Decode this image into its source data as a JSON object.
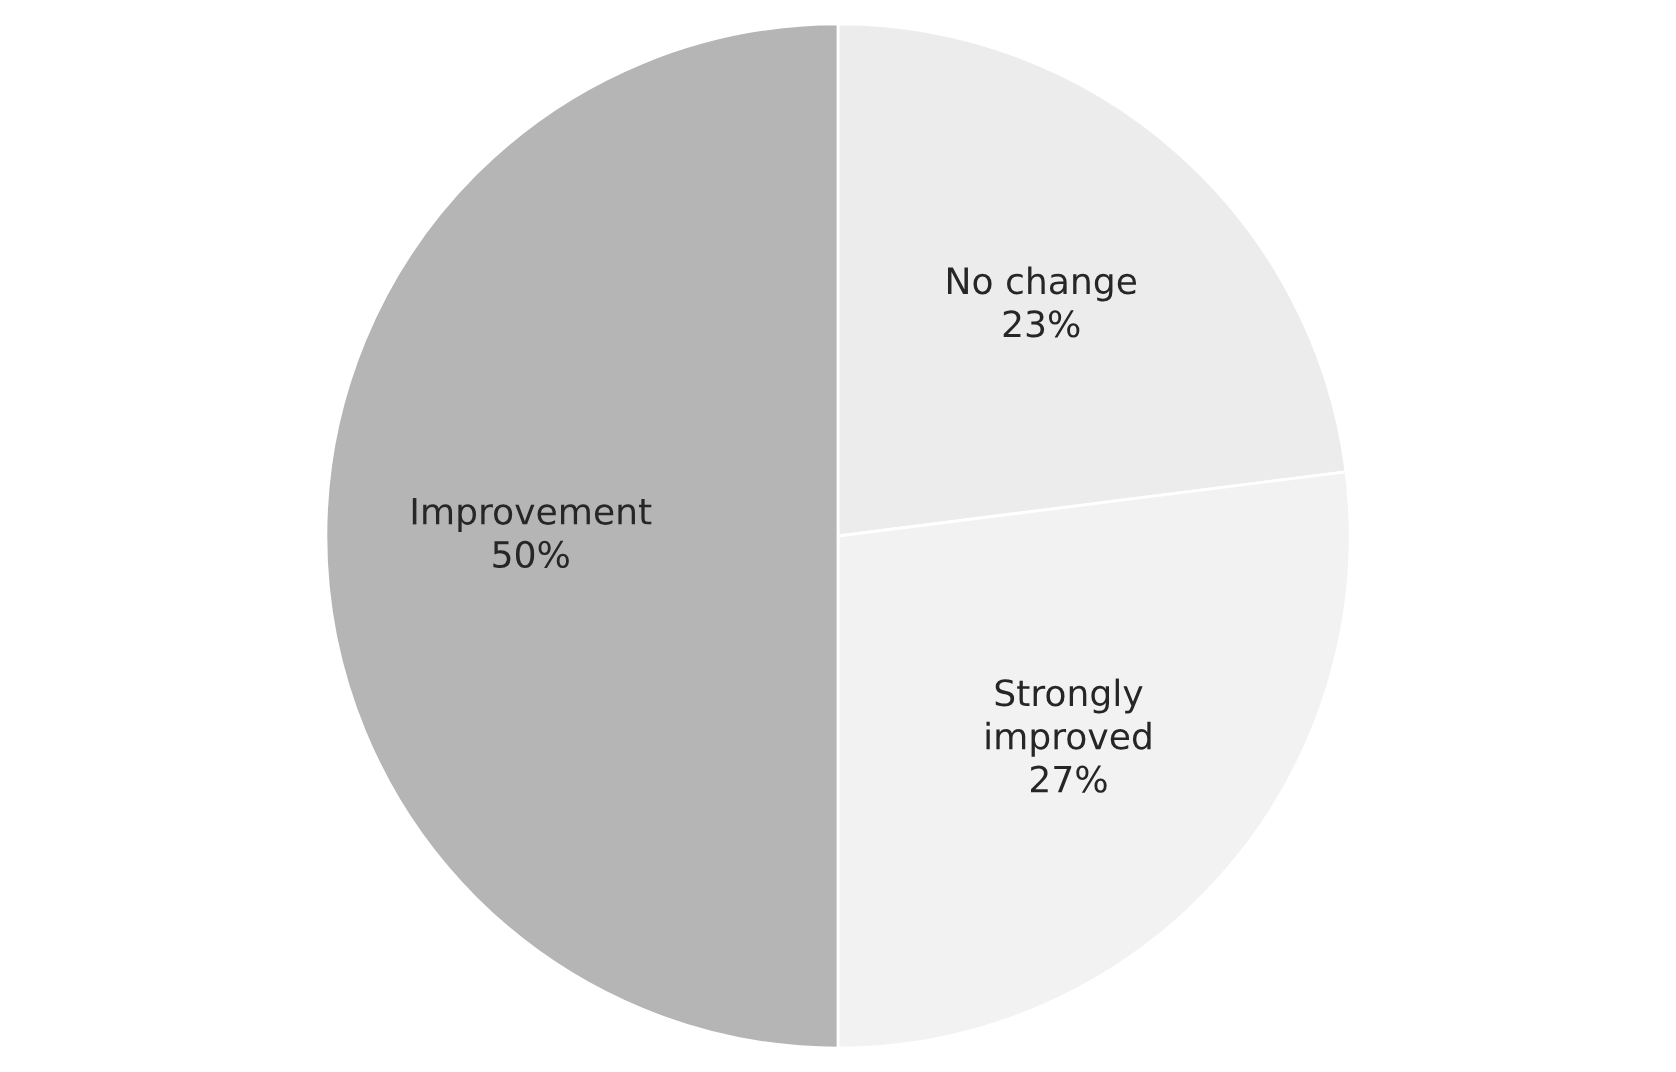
{
  "chart_data": {
    "type": "pie",
    "categories": [
      "No change",
      "Strongly improved",
      "Improvement"
    ],
    "values": [
      23,
      27,
      50
    ],
    "value_labels": [
      "23%",
      "27%",
      "50%"
    ],
    "colors": [
      "#ececec",
      "#f2f2f2",
      "#b5b5b5"
    ]
  }
}
